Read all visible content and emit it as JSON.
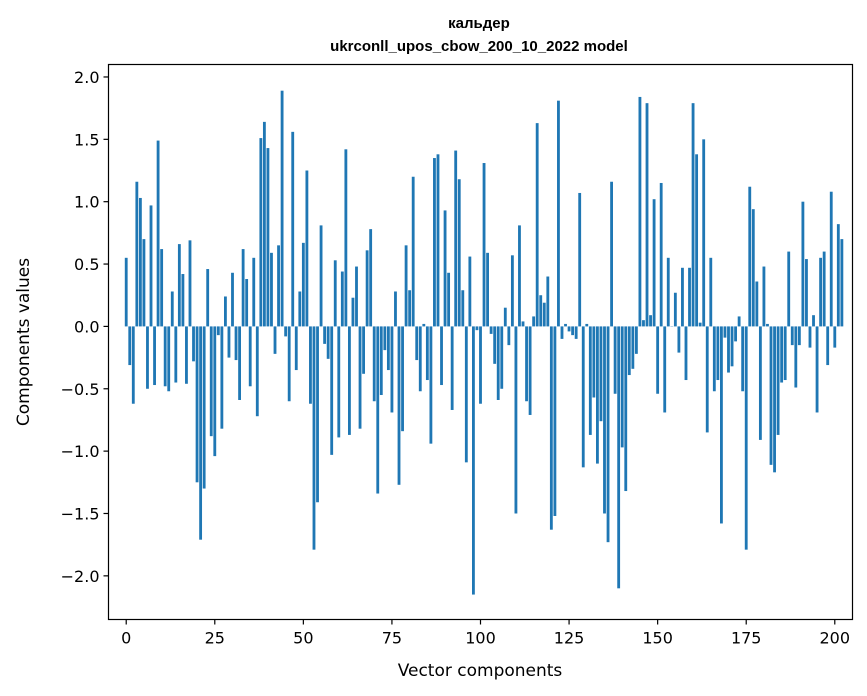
{
  "chart_data": {
    "type": "bar",
    "title": "кальдер",
    "subtitle": "ukrconll_upos_cbow_200_10_2022 model",
    "xlabel": "Vector components",
    "ylabel": "Components values",
    "xlim": [
      -5,
      205
    ],
    "ylim": [
      -2.35,
      2.1
    ],
    "xticks": [
      0,
      25,
      50,
      75,
      100,
      125,
      150,
      175,
      200
    ],
    "yticks": [
      -2.0,
      -1.5,
      -1.0,
      -0.5,
      0.0,
      0.5,
      1.0,
      1.5,
      2.0
    ],
    "ytick_labels": [
      "−2.0",
      "−1.5",
      "−1.0",
      "−0.5",
      "0.0",
      "0.5",
      "1.0",
      "1.5",
      "2.0"
    ],
    "bar_color": "#1f77b4",
    "values": [
      0.55,
      -0.31,
      -0.62,
      1.16,
      1.03,
      0.7,
      -0.5,
      0.97,
      -0.47,
      1.49,
      0.62,
      -0.48,
      -0.52,
      0.28,
      -0.45,
      0.66,
      0.42,
      -0.46,
      0.69,
      -0.28,
      -1.25,
      -1.71,
      -1.3,
      0.46,
      -0.88,
      -1.04,
      -0.07,
      -0.82,
      0.24,
      -0.25,
      0.43,
      -0.27,
      -0.59,
      0.62,
      0.38,
      -0.48,
      0.55,
      -0.72,
      1.51,
      1.64,
      1.43,
      0.59,
      -0.22,
      0.65,
      1.89,
      -0.08,
      -0.6,
      1.56,
      -0.35,
      0.28,
      0.67,
      1.25,
      -0.62,
      -1.79,
      -1.41,
      0.81,
      -0.14,
      -0.26,
      -1.03,
      0.53,
      -0.89,
      0.44,
      1.42,
      -0.87,
      0.23,
      0.48,
      -0.82,
      -0.38,
      0.61,
      0.78,
      -0.6,
      -1.34,
      -0.55,
      -0.19,
      -0.35,
      -0.69,
      0.28,
      -1.27,
      -0.84,
      0.65,
      0.29,
      1.2,
      -0.27,
      -0.52,
      0.02,
      -0.43,
      -0.94,
      1.35,
      1.38,
      -0.47,
      0.93,
      0.43,
      -0.67,
      1.41,
      1.18,
      0.29,
      -1.09,
      0.56,
      -2.15,
      -0.03,
      -0.62,
      1.31,
      0.59,
      -0.06,
      -0.3,
      -0.59,
      -0.5,
      0.15,
      -0.15,
      0.57,
      -1.5,
      0.81,
      0.04,
      -0.6,
      -0.71,
      0.08,
      1.63,
      0.25,
      0.19,
      0.4,
      -1.63,
      -1.52,
      1.81,
      -0.1,
      0.02,
      -0.04,
      -0.07,
      -0.1,
      1.07,
      -1.13,
      0.02,
      -0.87,
      -0.57,
      -1.1,
      -0.76,
      -1.5,
      -1.73,
      1.16,
      -0.54,
      -2.1,
      -0.97,
      -1.32,
      -0.39,
      -0.34,
      -0.22,
      1.84,
      0.05,
      1.79,
      0.09,
      1.02,
      -0.54,
      1.15,
      -0.69,
      0.55,
      0.0,
      0.27,
      -0.21,
      0.47,
      -0.43,
      0.47,
      1.79,
      1.38,
      0.03,
      1.5,
      -0.85,
      0.55,
      -0.52,
      -0.43,
      -1.58,
      -0.09,
      -0.37,
      -0.32,
      -0.12,
      0.08,
      -0.52,
      -1.79,
      1.12,
      0.94,
      0.36,
      -0.91,
      0.48,
      0.02,
      -1.11,
      -1.17,
      -0.87,
      -0.45,
      -0.43,
      0.6,
      -0.15,
      -0.49,
      -0.15,
      1.0,
      0.54,
      -0.17,
      0.09,
      -0.69,
      0.55,
      0.6,
      -0.31,
      1.08,
      -0.17,
      0.82,
      0.7
    ]
  }
}
